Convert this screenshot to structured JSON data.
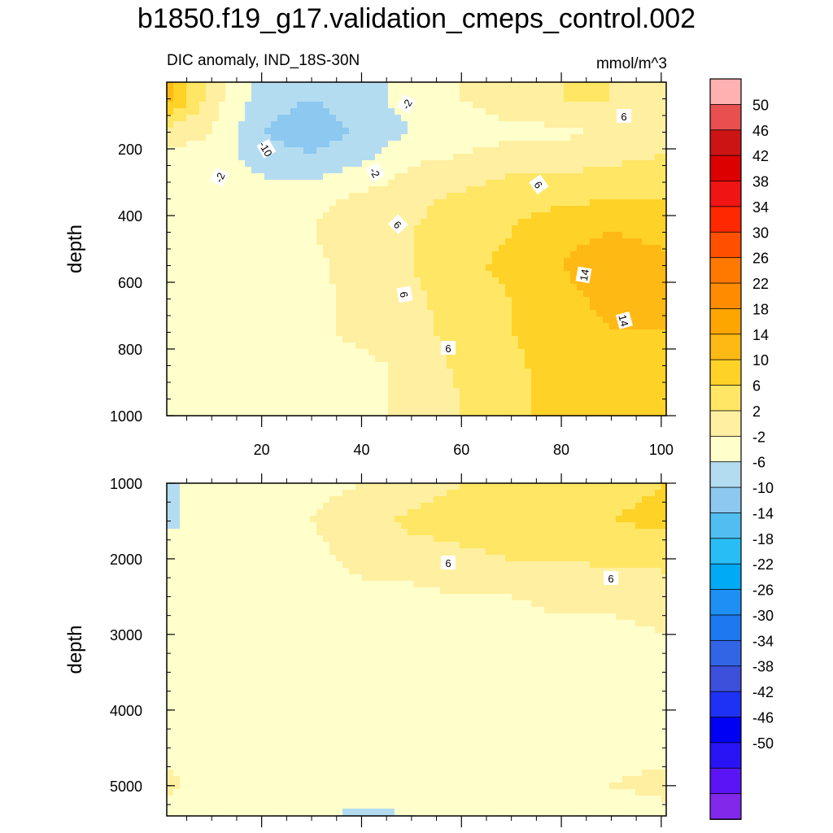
{
  "title": "b1850.f19_g17.validation_cmeps_control.002",
  "chart_data": [
    {
      "type": "heatmap",
      "panel": "upper",
      "subtitle_left": "DIC anomaly, IND_18S-30N",
      "subtitle_right": "mmol/m^3",
      "xlabel": "",
      "ylabel": "depth",
      "xlim": [
        1,
        101
      ],
      "ylim": [
        0,
        1000
      ],
      "yticks": [
        "200",
        "400",
        "600",
        "800",
        "1000"
      ],
      "xticks": [
        "20",
        "40",
        "60",
        "80",
        "100"
      ],
      "contour_labels": [
        "-2",
        "6",
        "-10",
        "-2",
        "-2",
        "6",
        "6",
        "14",
        "6",
        "14",
        "6"
      ],
      "field_x": [
        1,
        10,
        20,
        30,
        40,
        50,
        60,
        70,
        80,
        90,
        101
      ],
      "field_depth": [
        50,
        150,
        250,
        350,
        450,
        550,
        650,
        750,
        850,
        950
      ],
      "field_values": [
        [
          16,
          4,
          -4,
          -6,
          -4,
          0,
          2,
          4,
          6,
          6,
          4
        ],
        [
          4,
          2,
          -6,
          -9,
          -5,
          -2,
          0,
          1,
          1,
          3,
          4
        ],
        [
          0,
          0,
          -3,
          -4,
          -2,
          2,
          3,
          5,
          5,
          6,
          7
        ],
        [
          -1,
          0,
          0,
          1,
          3,
          5,
          7,
          9,
          9,
          10,
          10
        ],
        [
          -1,
          0,
          0,
          2,
          4,
          6,
          8,
          10,
          13,
          14,
          13
        ],
        [
          -1,
          0,
          0,
          1,
          4,
          6,
          9,
          11,
          14,
          16,
          15
        ],
        [
          1,
          0,
          0,
          1,
          3,
          5,
          8,
          10,
          13,
          15,
          15
        ],
        [
          1,
          0,
          0,
          1,
          3,
          5,
          7,
          10,
          12,
          14,
          14
        ],
        [
          0,
          0,
          0,
          0,
          1,
          3,
          7,
          9,
          12,
          13,
          13
        ],
        [
          0,
          0,
          0,
          0,
          1,
          3,
          6,
          9,
          12,
          13,
          13
        ]
      ]
    },
    {
      "type": "heatmap",
      "panel": "lower",
      "xlabel": "",
      "ylabel": "depth",
      "xlim": [
        1,
        101
      ],
      "ylim": [
        1000,
        5400
      ],
      "yticks": [
        "1000",
        "2000",
        "3000",
        "4000",
        "5000"
      ],
      "contour_labels": [
        "6",
        "6"
      ],
      "field_x": [
        1,
        10,
        20,
        30,
        40,
        50,
        60,
        70,
        80,
        90,
        101
      ],
      "field_depth": [
        1000,
        1500,
        2000,
        2500,
        3000,
        3500,
        4000,
        4500,
        5000,
        5400
      ],
      "field_values": [
        [
          -3,
          0,
          0,
          1,
          2,
          4,
          6,
          7,
          8,
          9,
          10
        ],
        [
          -3,
          0,
          1,
          2,
          4,
          7,
          8,
          9,
          9,
          10,
          11
        ],
        [
          0,
          0,
          0,
          1,
          3,
          4,
          5,
          6,
          6,
          7,
          7
        ],
        [
          0,
          0,
          0,
          0,
          1,
          1,
          2,
          2,
          3,
          3,
          4
        ],
        [
          0,
          0,
          0,
          0,
          0,
          0,
          0,
          0,
          1,
          1,
          2
        ],
        [
          0,
          0,
          0,
          0,
          0,
          0,
          0,
          0,
          0,
          0,
          0
        ],
        [
          0,
          0,
          0,
          0,
          0,
          0,
          0,
          0,
          0,
          0,
          0
        ],
        [
          1,
          0,
          0,
          0,
          0,
          0,
          0,
          0,
          0,
          1,
          1
        ],
        [
          3,
          0,
          0,
          0,
          0,
          0,
          0,
          0,
          0,
          2,
          3
        ],
        [
          0,
          0,
          0,
          -1,
          -3,
          -2,
          0,
          0,
          0,
          0,
          1
        ]
      ]
    }
  ],
  "colorbar": {
    "labels": [
      "50",
      "46",
      "42",
      "38",
      "34",
      "30",
      "26",
      "22",
      "18",
      "14",
      "10",
      "6",
      "2",
      "-2",
      "-6",
      "-10",
      "-14",
      "-18",
      "-22",
      "-26",
      "-30",
      "-34",
      "-38",
      "-42",
      "-46",
      "-50"
    ],
    "colors": [
      "#ffb0b0",
      "#e85050",
      "#cc1414",
      "#dc0000",
      "#f01414",
      "#ff2800",
      "#ff5000",
      "#ff7800",
      "#ff8c00",
      "#ffa500",
      "#ffb914",
      "#ffd228",
      "#ffe664",
      "#ffefa0",
      "#ffffcc",
      "#b4dcf0",
      "#8cc8f0",
      "#50bef0",
      "#28bef5",
      "#00aaf5",
      "#1e90f5",
      "#1e78f0",
      "#3264e6",
      "#3c50dc",
      "#1e32f5",
      "#0000f5",
      "#2814f5",
      "#5a14f5",
      "#8228eb"
    ]
  }
}
